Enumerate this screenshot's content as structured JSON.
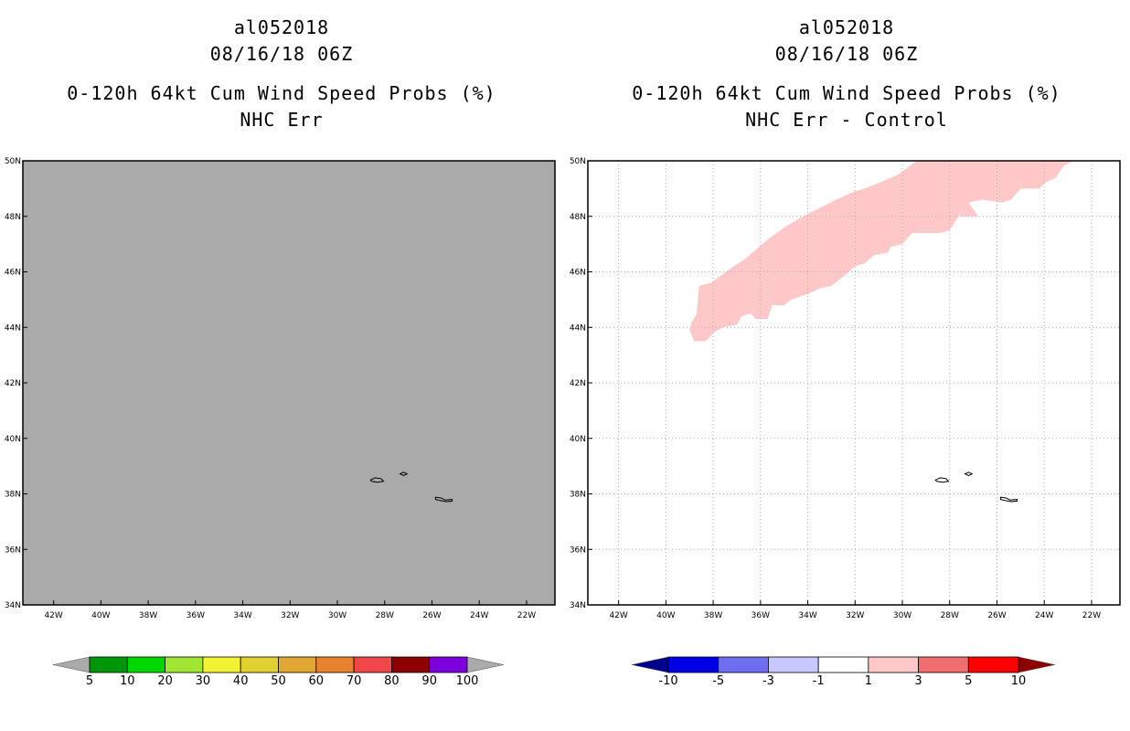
{
  "chart_data": [
    {
      "type": "heatmap",
      "title_lines": [
        "al052018",
        "08/16/18 06Z",
        "0-120h 64kt Cum Wind Speed Probs (%)",
        "NHC Err"
      ],
      "plot_background": "#aaaaaa",
      "grid": false,
      "xlim": [
        -43.3,
        -20.8
      ],
      "ylim": [
        34,
        50
      ],
      "x_ticks": [
        -42,
        -40,
        -38,
        -36,
        -34,
        -32,
        -30,
        -28,
        -26,
        -24,
        -22
      ],
      "x_tick_labels": [
        "42W",
        "40W",
        "38W",
        "36W",
        "34W",
        "32W",
        "30W",
        "28W",
        "26W",
        "24W",
        "22W"
      ],
      "y_ticks": [
        34,
        36,
        38,
        40,
        42,
        44,
        46,
        48,
        50
      ],
      "y_tick_labels": [
        "34N",
        "36N",
        "38N",
        "40N",
        "42N",
        "44N",
        "46N",
        "48N",
        "50N"
      ],
      "colorbar": {
        "labels": [
          "5",
          "10",
          "20",
          "30",
          "40",
          "50",
          "60",
          "70",
          "80",
          "90",
          "100"
        ],
        "colors": [
          "#00960a",
          "#00d800",
          "#a0e632",
          "#f2f233",
          "#e0d030",
          "#e0a832",
          "#e8822e",
          "#f04848",
          "#8c0000",
          "#7b00dc"
        ],
        "under_color": "#aaaaaa",
        "over_color": "#aaaaaa"
      }
    },
    {
      "type": "heatmap",
      "title_lines": [
        "al052018",
        "08/16/18 06Z",
        "0-120h 64kt Cum Wind Speed Probs (%)",
        "NHC Err - Control"
      ],
      "plot_background": "#ffffff",
      "grid": true,
      "xlim": [
        -43.3,
        -20.8
      ],
      "ylim": [
        34,
        50
      ],
      "x_ticks": [
        -42,
        -40,
        -38,
        -36,
        -34,
        -32,
        -30,
        -28,
        -26,
        -24,
        -22
      ],
      "x_tick_labels": [
        "42W",
        "40W",
        "38W",
        "36W",
        "34W",
        "32W",
        "30W",
        "28W",
        "26W",
        "24W",
        "22W"
      ],
      "y_ticks": [
        34,
        36,
        38,
        40,
        42,
        44,
        46,
        48,
        50
      ],
      "y_tick_labels": [
        "34N",
        "36N",
        "38N",
        "40N",
        "42N",
        "44N",
        "46N",
        "48N",
        "50N"
      ],
      "shaded_region": {
        "label": "1 to 3",
        "color": "#ffc8c8",
        "polygon_lonlat": [
          [
            -38.8,
            43.5
          ],
          [
            -38.3,
            43.5
          ],
          [
            -38.0,
            43.8
          ],
          [
            -37.6,
            44.0
          ],
          [
            -37.0,
            44.1
          ],
          [
            -36.8,
            44.4
          ],
          [
            -36.4,
            44.5
          ],
          [
            -36.2,
            44.3
          ],
          [
            -35.7,
            44.3
          ],
          [
            -35.5,
            44.8
          ],
          [
            -35.0,
            44.8
          ],
          [
            -34.7,
            45.0
          ],
          [
            -34.0,
            45.2
          ],
          [
            -33.5,
            45.4
          ],
          [
            -33.0,
            45.5
          ],
          [
            -32.4,
            45.9
          ],
          [
            -32.0,
            46.2
          ],
          [
            -31.6,
            46.3
          ],
          [
            -31.2,
            46.6
          ],
          [
            -30.6,
            46.7
          ],
          [
            -30.5,
            46.9
          ],
          [
            -30.0,
            47.0
          ],
          [
            -29.8,
            47.2
          ],
          [
            -29.6,
            47.4
          ],
          [
            -29.0,
            47.4
          ],
          [
            -28.4,
            47.4
          ],
          [
            -28.0,
            47.5
          ],
          [
            -27.7,
            47.9
          ],
          [
            -27.4,
            48.3
          ],
          [
            -27.6,
            48.0
          ],
          [
            -26.8,
            48.0
          ],
          [
            -27.2,
            48.5
          ],
          [
            -26.6,
            48.6
          ],
          [
            -25.8,
            48.5
          ],
          [
            -25.4,
            48.6
          ],
          [
            -25.0,
            49.0
          ],
          [
            -24.2,
            49.0
          ],
          [
            -24.0,
            49.2
          ],
          [
            -23.5,
            49.4
          ],
          [
            -23.2,
            49.8
          ],
          [
            -22.8,
            50.0
          ],
          [
            -29.4,
            50.0
          ],
          [
            -30.2,
            49.5
          ],
          [
            -31.0,
            49.2
          ],
          [
            -31.6,
            49.0
          ],
          [
            -32.0,
            48.9
          ],
          [
            -32.8,
            48.6
          ],
          [
            -33.5,
            48.3
          ],
          [
            -34.2,
            48.0
          ],
          [
            -35.0,
            47.6
          ],
          [
            -35.8,
            47.1
          ],
          [
            -36.6,
            46.5
          ],
          [
            -37.3,
            46.1
          ],
          [
            -38.1,
            45.6
          ],
          [
            -38.6,
            45.5
          ],
          [
            -38.7,
            44.5
          ],
          [
            -38.9,
            44.2
          ],
          [
            -39.0,
            43.9
          ]
        ]
      },
      "colorbar": {
        "labels": [
          "-10",
          "-5",
          "-3",
          "-1",
          "1",
          "3",
          "5",
          "10"
        ],
        "colors": [
          "#0000e6",
          "#6e6ef0",
          "#c8c8ff",
          "#ffffff",
          "#ffc8c8",
          "#f06e6e",
          "#ff0000"
        ],
        "under_color": "#00008c",
        "over_color": "#8c0000"
      }
    }
  ],
  "islands_lonlat": [
    [
      [
        -28.6,
        38.5
      ],
      [
        -28.4,
        38.58
      ],
      [
        -28.15,
        38.55
      ],
      [
        -28.05,
        38.45
      ],
      [
        -28.3,
        38.42
      ],
      [
        -28.55,
        38.45
      ]
    ],
    [
      [
        -27.35,
        38.72
      ],
      [
        -27.2,
        38.78
      ],
      [
        -27.05,
        38.72
      ],
      [
        -27.2,
        38.66
      ]
    ],
    [
      [
        -25.85,
        37.88
      ],
      [
        -25.6,
        37.85
      ],
      [
        -25.45,
        37.78
      ],
      [
        -25.15,
        37.8
      ],
      [
        -25.15,
        37.74
      ],
      [
        -25.4,
        37.72
      ],
      [
        -25.65,
        37.76
      ],
      [
        -25.85,
        37.8
      ]
    ]
  ]
}
